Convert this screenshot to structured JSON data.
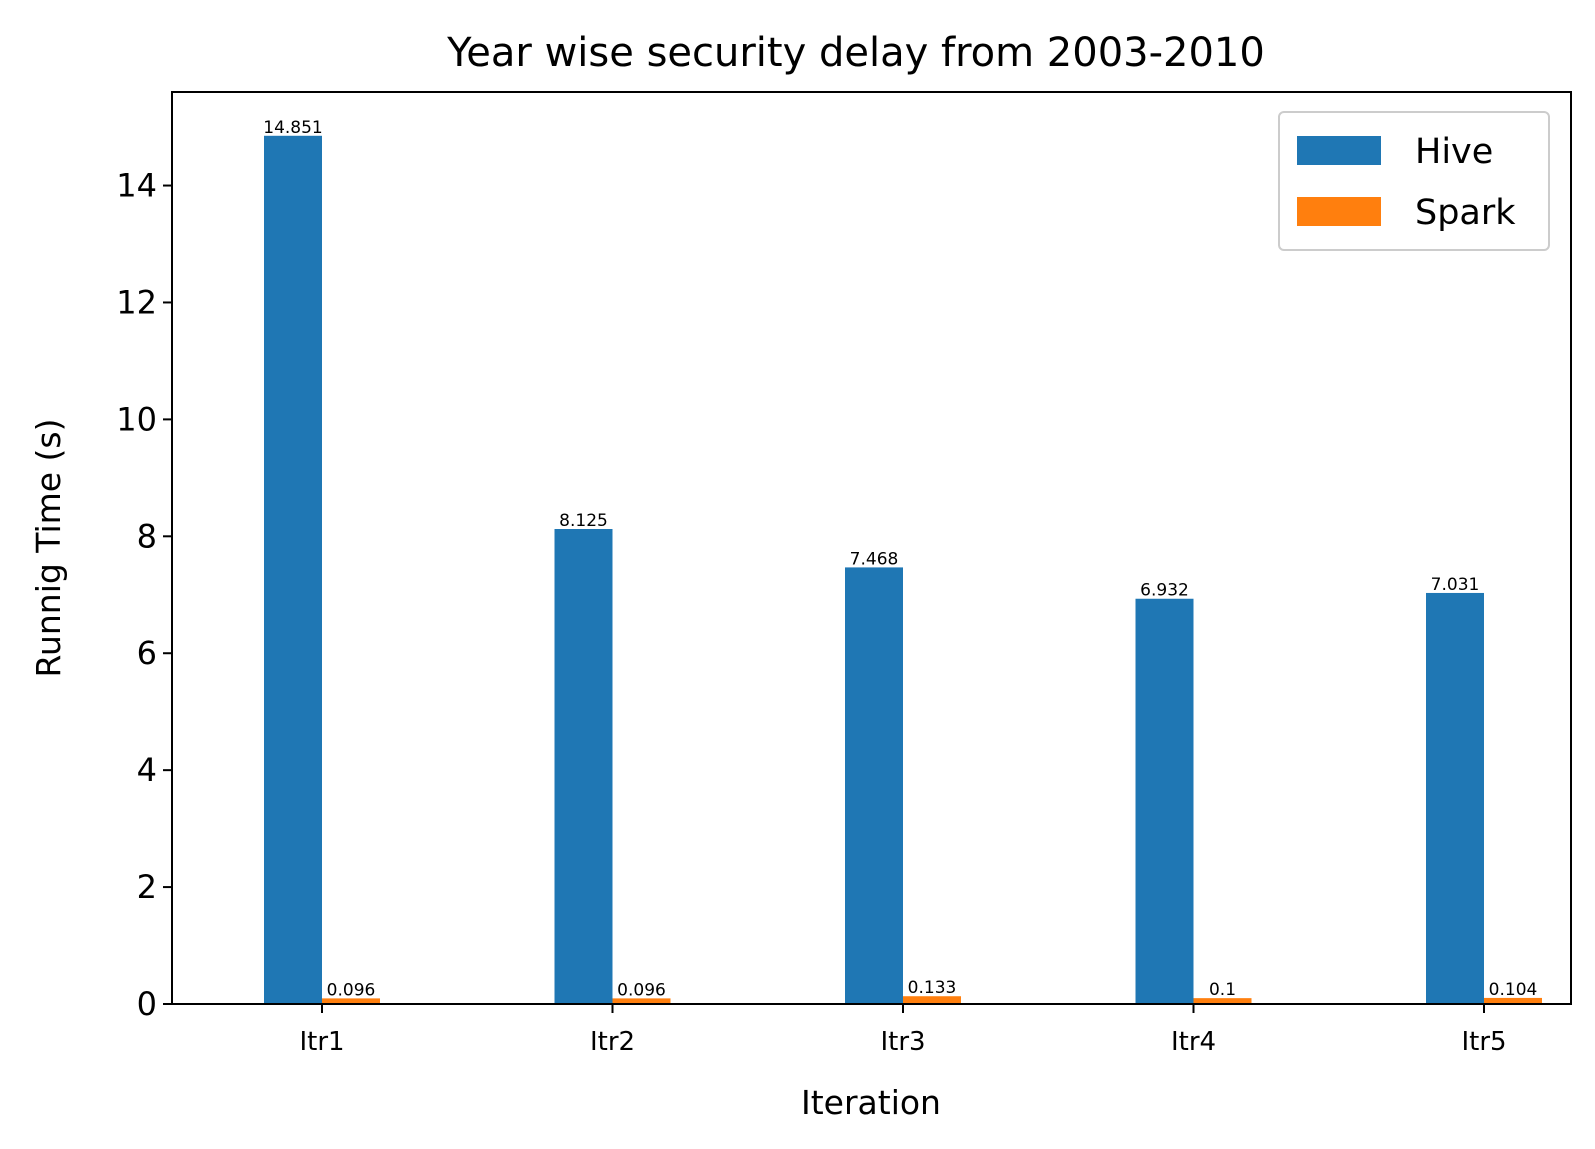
{
  "chart_data": {
    "type": "bar",
    "title": "Year wise security delay from 2003-2010",
    "xlabel": "Iteration",
    "ylabel": "Runnig Time (s)",
    "categories": [
      "Itr1",
      "Itr2",
      "Itr3",
      "Itr4",
      "Itr5"
    ],
    "series": [
      {
        "name": "Hive",
        "color": "#1f77b4",
        "values": [
          14.851,
          8.125,
          7.468,
          6.932,
          7.031
        ],
        "labels": [
          "14.851",
          "8.125",
          "7.468",
          "6.932",
          "7.031"
        ]
      },
      {
        "name": "Spark",
        "color": "#ff7f0e",
        "values": [
          0.096,
          0.096,
          0.133,
          0.1,
          0.104
        ],
        "labels": [
          "0.096",
          "0.096",
          "0.133",
          "0.1",
          "0.104"
        ]
      }
    ],
    "ylim": [
      0,
      15.6
    ],
    "yticks": [
      0,
      2,
      4,
      6,
      8,
      10,
      12,
      14
    ],
    "ytick_labels": [
      "0",
      "2",
      "4",
      "6",
      "8",
      "10",
      "12",
      "14"
    ],
    "grid": false,
    "legend": "top-right"
  }
}
